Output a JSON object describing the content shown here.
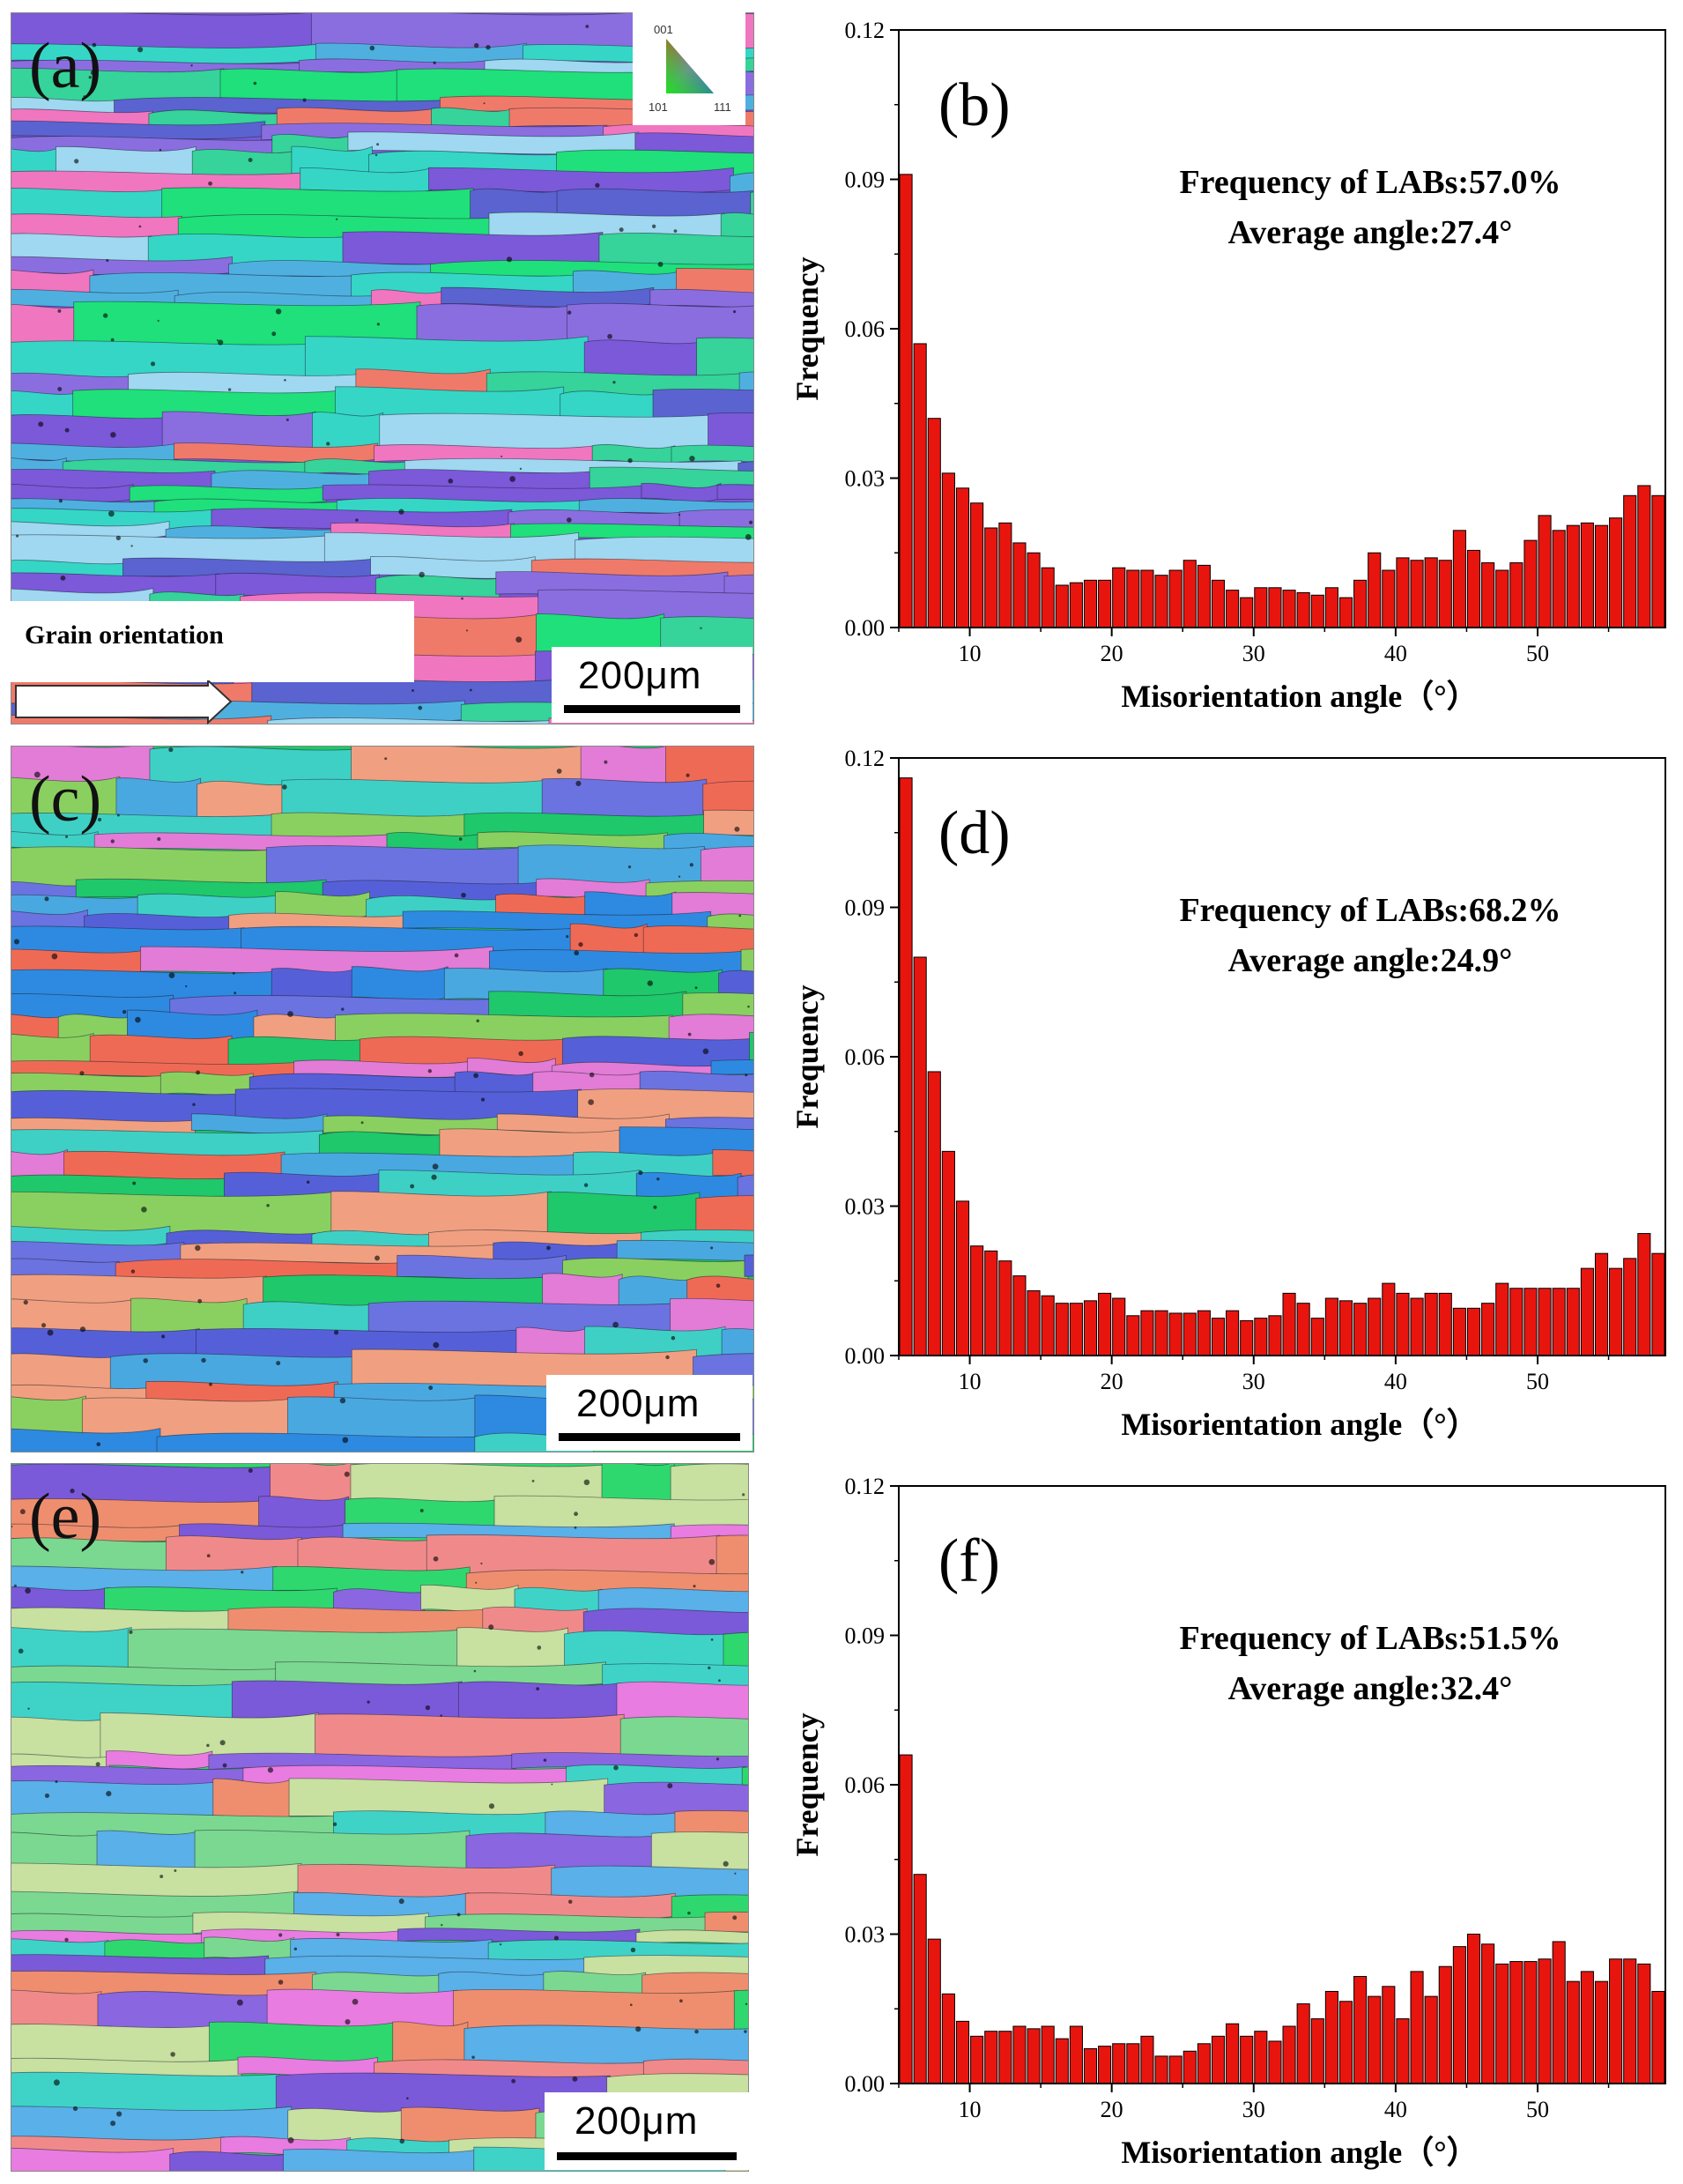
{
  "panels": [
    {
      "map": {
        "letter": "(a)",
        "scale_label": "200μm",
        "legend_title": "Grain orientation",
        "ipf_labels": [
          "001",
          "101",
          "111"
        ],
        "palette": [
          "#7b59d9",
          "#8a6ee0",
          "#4fb0e0",
          "#35d6c6",
          "#1fe07a",
          "#f07a6a",
          "#f076c0",
          "#9fd8f0",
          "#5a63cf",
          "#36d39a"
        ]
      },
      "chart_data": {
        "type": "bar",
        "panel_label": "(b)",
        "xlabel": "Misorientation angle（°）",
        "ylabel": "Frequency",
        "xlim": [
          5,
          59
        ],
        "ylim": [
          0,
          0.12
        ],
        "xticks": [
          10,
          20,
          30,
          40,
          50
        ],
        "yticks": [
          "0.00",
          "0.03",
          "0.06",
          "0.09",
          "0.12"
        ],
        "annotations": [
          "Frequency of LABs:57.0%",
          "Average angle:27.4°"
        ],
        "bar_color": "#e8150f",
        "x": [
          5,
          6,
          7,
          8,
          9,
          10,
          11,
          12,
          13,
          14,
          15,
          16,
          17,
          18,
          19,
          20,
          21,
          22,
          23,
          24,
          25,
          26,
          27,
          28,
          29,
          30,
          31,
          32,
          33,
          34,
          35,
          36,
          37,
          38,
          39,
          40,
          41,
          42,
          43,
          44,
          45,
          46,
          47,
          48,
          49,
          50,
          51,
          52,
          53,
          54,
          55,
          56,
          57,
          58
        ],
        "values": [
          0.091,
          0.057,
          0.042,
          0.031,
          0.028,
          0.025,
          0.02,
          0.021,
          0.017,
          0.015,
          0.012,
          0.0085,
          0.009,
          0.0095,
          0.0095,
          0.012,
          0.0115,
          0.0115,
          0.0105,
          0.0115,
          0.0135,
          0.0125,
          0.0095,
          0.0075,
          0.006,
          0.008,
          0.008,
          0.0075,
          0.007,
          0.0065,
          0.008,
          0.006,
          0.0095,
          0.015,
          0.0115,
          0.014,
          0.0135,
          0.014,
          0.0135,
          0.0195,
          0.0155,
          0.013,
          0.0115,
          0.013,
          0.0175,
          0.0225,
          0.0195,
          0.0205,
          0.021,
          0.0205,
          0.022,
          0.0265,
          0.0285,
          0.0265
        ]
      }
    },
    {
      "map": {
        "letter": "(c)",
        "scale_label": "200μm",
        "legend_title": "",
        "ipf_labels": [],
        "palette": [
          "#1fc86a",
          "#ef6a55",
          "#6b73e0",
          "#4aa8e0",
          "#e27cd6",
          "#3fd0c5",
          "#5560d8",
          "#f0a080",
          "#8ad060",
          "#2e8ae0"
        ]
      },
      "chart_data": {
        "type": "bar",
        "panel_label": "(d)",
        "xlabel": "Misorientation angle（°）",
        "ylabel": "Frequency",
        "xlim": [
          5,
          59
        ],
        "ylim": [
          0,
          0.12
        ],
        "xticks": [
          10,
          20,
          30,
          40,
          50
        ],
        "yticks": [
          "0.00",
          "0.03",
          "0.06",
          "0.09",
          "0.12"
        ],
        "annotations": [
          "Frequency of LABs:68.2%",
          "Average angle:24.9°"
        ],
        "bar_color": "#e8150f",
        "x": [
          5,
          6,
          7,
          8,
          9,
          10,
          11,
          12,
          13,
          14,
          15,
          16,
          17,
          18,
          19,
          20,
          21,
          22,
          23,
          24,
          25,
          26,
          27,
          28,
          29,
          30,
          31,
          32,
          33,
          34,
          35,
          36,
          37,
          38,
          39,
          40,
          41,
          42,
          43,
          44,
          45,
          46,
          47,
          48,
          49,
          50,
          51,
          52,
          53,
          54,
          55,
          56,
          57,
          58
        ],
        "values": [
          0.116,
          0.08,
          0.057,
          0.041,
          0.031,
          0.022,
          0.021,
          0.019,
          0.016,
          0.013,
          0.012,
          0.0105,
          0.0105,
          0.011,
          0.0125,
          0.0115,
          0.008,
          0.009,
          0.009,
          0.0085,
          0.0085,
          0.009,
          0.0075,
          0.009,
          0.007,
          0.0075,
          0.008,
          0.0125,
          0.0105,
          0.0075,
          0.0115,
          0.011,
          0.0105,
          0.0115,
          0.0145,
          0.0125,
          0.0115,
          0.0125,
          0.0125,
          0.0095,
          0.0095,
          0.0105,
          0.0145,
          0.0135,
          0.0135,
          0.0135,
          0.0135,
          0.0135,
          0.0175,
          0.0205,
          0.0175,
          0.0195,
          0.0245,
          0.0205
        ]
      }
    },
    {
      "map": {
        "letter": "(e)",
        "scale_label": "200μm",
        "legend_title": "",
        "ipf_labels": [],
        "palette": [
          "#2fd86e",
          "#3fd3c8",
          "#8a66e0",
          "#e87ce0",
          "#ef8e6e",
          "#5ab0e8",
          "#7bd890",
          "#7a5ad8",
          "#c8e0a0",
          "#f08a8a"
        ]
      },
      "chart_data": {
        "type": "bar",
        "panel_label": "(f)",
        "xlabel": "Misorientation angle（°）",
        "ylabel": "Frequency",
        "xlim": [
          5,
          59
        ],
        "ylim": [
          0,
          0.12
        ],
        "xticks": [
          10,
          20,
          30,
          40,
          50
        ],
        "yticks": [
          "0.00",
          "0.03",
          "0.06",
          "0.09",
          "0.12"
        ],
        "annotations": [
          "Frequency of LABs:51.5%",
          "Average angle:32.4°"
        ],
        "bar_color": "#e8150f",
        "x": [
          5,
          6,
          7,
          8,
          9,
          10,
          11,
          12,
          13,
          14,
          15,
          16,
          17,
          18,
          19,
          20,
          21,
          22,
          23,
          24,
          25,
          26,
          27,
          28,
          29,
          30,
          31,
          32,
          33,
          34,
          35,
          36,
          37,
          38,
          39,
          40,
          41,
          42,
          43,
          44,
          45,
          46,
          47,
          48,
          49,
          50,
          51,
          52,
          53,
          54,
          55,
          56,
          57,
          58
        ],
        "values": [
          0.066,
          0.042,
          0.029,
          0.018,
          0.0125,
          0.0095,
          0.0105,
          0.0105,
          0.0115,
          0.011,
          0.0115,
          0.009,
          0.0115,
          0.007,
          0.0075,
          0.008,
          0.008,
          0.0095,
          0.0055,
          0.0055,
          0.0065,
          0.008,
          0.0095,
          0.012,
          0.0095,
          0.0105,
          0.0085,
          0.0115,
          0.016,
          0.013,
          0.0185,
          0.0165,
          0.0215,
          0.0175,
          0.0195,
          0.013,
          0.0225,
          0.0175,
          0.0235,
          0.0275,
          0.03,
          0.028,
          0.024,
          0.0245,
          0.0245,
          0.025,
          0.0285,
          0.0205,
          0.0225,
          0.0205,
          0.025,
          0.025,
          0.024,
          0.0185
        ]
      }
    }
  ]
}
